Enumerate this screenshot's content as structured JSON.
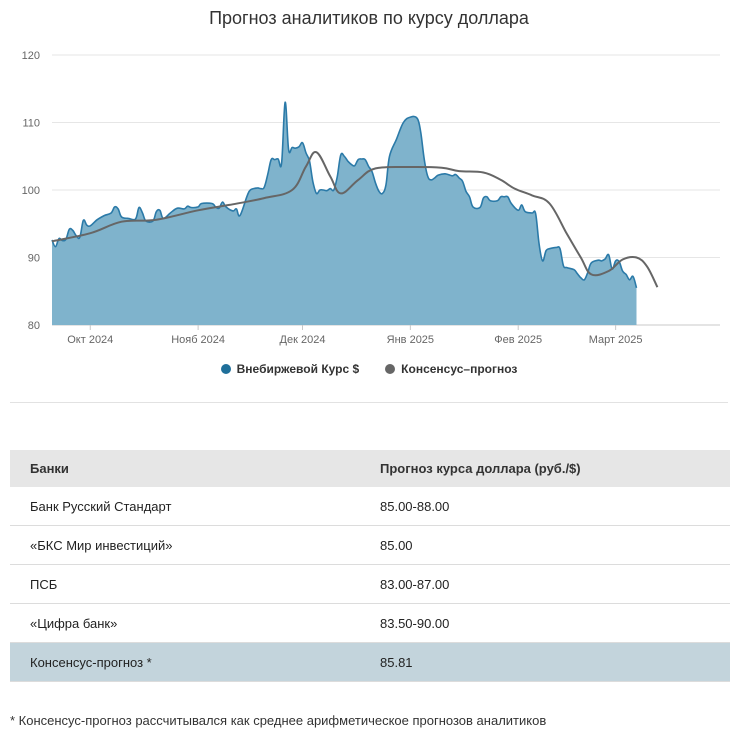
{
  "chart_data": {
    "type": "area",
    "title": "Прогноз аналитиков по курсу доллара",
    "ylim": [
      80,
      120
    ],
    "yticks": [
      80,
      90,
      100,
      110,
      120
    ],
    "xlim": [
      "2024-09-20",
      "2025-03-31"
    ],
    "xticks": [
      {
        "date": "2024-10-01",
        "label": "Окт 2024"
      },
      {
        "date": "2024-11-01",
        "label": "Нояб 2024"
      },
      {
        "date": "2024-12-01",
        "label": "Дек 2024"
      },
      {
        "date": "2025-01-01",
        "label": "Янв 2025"
      },
      {
        "date": "2025-02-01",
        "label": "Фев 2025"
      },
      {
        "date": "2025-03-01",
        "label": "Март 2025"
      }
    ],
    "grid": true,
    "legend_position": "bottom",
    "series": [
      {
        "name": "Внебиржевой Курс $",
        "type": "area",
        "color": "#2b7aa8",
        "fill": "#7fb3cc",
        "points": [
          [
            "2024-09-20",
            92.6
          ],
          [
            "2024-09-21",
            91.6
          ],
          [
            "2024-09-22",
            92.8
          ],
          [
            "2024-09-23",
            92.5
          ],
          [
            "2024-09-24",
            92.7
          ],
          [
            "2024-09-25",
            94.2
          ],
          [
            "2024-09-26",
            94.0
          ],
          [
            "2024-09-27",
            93.2
          ],
          [
            "2024-09-28",
            93.0
          ],
          [
            "2024-09-29",
            95.5
          ],
          [
            "2024-09-30",
            94.8
          ],
          [
            "2024-10-01",
            94.7
          ],
          [
            "2024-10-03",
            95.6
          ],
          [
            "2024-10-05",
            96.2
          ],
          [
            "2024-10-07",
            96.6
          ],
          [
            "2024-10-08",
            97.5
          ],
          [
            "2024-10-09",
            97.2
          ],
          [
            "2024-10-10",
            96.0
          ],
          [
            "2024-10-12",
            95.8
          ],
          [
            "2024-10-14",
            95.7
          ],
          [
            "2024-10-15",
            97.4
          ],
          [
            "2024-10-16",
            96.6
          ],
          [
            "2024-10-17",
            95.4
          ],
          [
            "2024-10-19",
            95.4
          ],
          [
            "2024-10-20",
            96.8
          ],
          [
            "2024-10-21",
            97.0
          ],
          [
            "2024-10-22",
            95.8
          ],
          [
            "2024-10-24",
            96.6
          ],
          [
            "2024-10-26",
            97.3
          ],
          [
            "2024-10-28",
            97.2
          ],
          [
            "2024-10-29",
            97.6
          ],
          [
            "2024-10-30",
            97.4
          ],
          [
            "2024-11-01",
            97.5
          ],
          [
            "2024-11-02",
            98.0
          ],
          [
            "2024-11-05",
            98.0
          ],
          [
            "2024-11-06",
            97.5
          ],
          [
            "2024-11-07",
            97.3
          ],
          [
            "2024-11-08",
            98.2
          ],
          [
            "2024-11-09",
            97.5
          ],
          [
            "2024-11-11",
            96.9
          ],
          [
            "2024-11-12",
            97.2
          ],
          [
            "2024-11-13",
            96.2
          ],
          [
            "2024-11-15",
            99.0
          ],
          [
            "2024-11-16",
            100.0
          ],
          [
            "2024-11-18",
            100.3
          ],
          [
            "2024-11-19",
            100.2
          ],
          [
            "2024-11-20",
            100.4
          ],
          [
            "2024-11-21",
            102.3
          ],
          [
            "2024-11-22",
            104.5
          ],
          [
            "2024-11-23",
            104.5
          ],
          [
            "2024-11-24",
            104.6
          ],
          [
            "2024-11-25",
            104.0
          ],
          [
            "2024-11-26",
            113.0
          ],
          [
            "2024-11-27",
            106.0
          ],
          [
            "2024-11-28",
            106.3
          ],
          [
            "2024-11-29",
            106.2
          ],
          [
            "2024-11-30",
            106.4
          ],
          [
            "2024-12-01",
            107.0
          ],
          [
            "2024-12-02",
            105.5
          ],
          [
            "2024-12-03",
            104.3
          ],
          [
            "2024-12-04",
            101.2
          ],
          [
            "2024-12-05",
            99.5
          ],
          [
            "2024-12-06",
            100.0
          ],
          [
            "2024-12-07",
            100.0
          ],
          [
            "2024-12-08",
            99.9
          ],
          [
            "2024-12-09",
            100.2
          ],
          [
            "2024-12-10",
            100.0
          ],
          [
            "2024-12-11",
            102.0
          ],
          [
            "2024-12-12",
            105.2
          ],
          [
            "2024-12-13",
            105.0
          ],
          [
            "2024-12-14",
            104.3
          ],
          [
            "2024-12-15",
            103.8
          ],
          [
            "2024-12-16",
            103.6
          ],
          [
            "2024-12-17",
            104.5
          ],
          [
            "2024-12-18",
            104.6
          ],
          [
            "2024-12-19",
            104.5
          ],
          [
            "2024-12-20",
            103.5
          ],
          [
            "2024-12-21",
            102.7
          ],
          [
            "2024-12-22",
            101.0
          ],
          [
            "2024-12-23",
            99.8
          ],
          [
            "2024-12-24",
            99.5
          ],
          [
            "2024-12-25",
            100.8
          ],
          [
            "2024-12-26",
            105.0
          ],
          [
            "2024-12-28",
            107.5
          ],
          [
            "2024-12-30",
            110.0
          ],
          [
            "2025-01-01",
            110.8
          ],
          [
            "2025-01-03",
            110.6
          ],
          [
            "2025-01-04",
            108.5
          ],
          [
            "2025-01-05",
            104.5
          ],
          [
            "2025-01-06",
            102.0
          ],
          [
            "2025-01-07",
            101.5
          ],
          [
            "2025-01-08",
            101.8
          ],
          [
            "2025-01-09",
            102.2
          ],
          [
            "2025-01-11",
            102.4
          ],
          [
            "2025-01-13",
            102.1
          ],
          [
            "2025-01-14",
            102.3
          ],
          [
            "2025-01-15",
            101.8
          ],
          [
            "2025-01-16",
            101.3
          ],
          [
            "2025-01-17",
            99.8
          ],
          [
            "2025-01-18",
            99.0
          ],
          [
            "2025-01-19",
            97.5
          ],
          [
            "2025-01-21",
            97.4
          ],
          [
            "2025-01-22",
            98.8
          ],
          [
            "2025-01-23",
            99.0
          ],
          [
            "2025-01-24",
            98.4
          ],
          [
            "2025-01-26",
            98.4
          ],
          [
            "2025-01-27",
            99.0
          ],
          [
            "2025-01-28",
            99.0
          ],
          [
            "2025-01-29",
            99.0
          ],
          [
            "2025-01-30",
            98.0
          ],
          [
            "2025-02-01",
            97.0
          ],
          [
            "2025-02-02",
            97.8
          ],
          [
            "2025-02-03",
            96.8
          ],
          [
            "2025-02-05",
            96.6
          ],
          [
            "2025-02-06",
            96.5
          ],
          [
            "2025-02-07",
            92.0
          ],
          [
            "2025-02-08",
            89.5
          ],
          [
            "2025-02-09",
            91.0
          ],
          [
            "2025-02-10",
            91.3
          ],
          [
            "2025-02-12",
            91.5
          ],
          [
            "2025-02-13",
            91.3
          ],
          [
            "2025-02-14",
            88.8
          ],
          [
            "2025-02-15",
            88.5
          ],
          [
            "2025-02-17",
            88.2
          ],
          [
            "2025-02-18",
            87.6
          ],
          [
            "2025-02-19",
            87.0
          ],
          [
            "2025-02-20",
            86.7
          ],
          [
            "2025-02-21",
            87.8
          ],
          [
            "2025-02-22",
            89.2
          ],
          [
            "2025-02-24",
            89.6
          ],
          [
            "2025-02-25",
            89.5
          ],
          [
            "2025-02-26",
            89.8
          ],
          [
            "2025-02-27",
            90.4
          ],
          [
            "2025-02-28",
            88.3
          ],
          [
            "2025-03-01",
            89.5
          ],
          [
            "2025-03-02",
            89.4
          ],
          [
            "2025-03-03",
            88.0
          ],
          [
            "2025-03-04",
            87.5
          ],
          [
            "2025-03-05",
            86.7
          ],
          [
            "2025-03-06",
            87.2
          ],
          [
            "2025-03-07",
            85.5
          ]
        ]
      },
      {
        "name": "Консенсус–прогноз",
        "type": "line",
        "color": "#666666",
        "points": [
          [
            "2024-09-20",
            92.4
          ],
          [
            "2024-10-01",
            93.6
          ],
          [
            "2024-10-10",
            95.3
          ],
          [
            "2024-10-20",
            95.6
          ],
          [
            "2024-11-01",
            97.0
          ],
          [
            "2024-11-10",
            97.8
          ],
          [
            "2024-11-20",
            98.8
          ],
          [
            "2024-11-28",
            100.0
          ],
          [
            "2024-12-02",
            103.5
          ],
          [
            "2024-12-05",
            105.6
          ],
          [
            "2024-12-09",
            102.0
          ],
          [
            "2024-12-12",
            99.5
          ],
          [
            "2024-12-17",
            101.5
          ],
          [
            "2024-12-22",
            103.2
          ],
          [
            "2025-01-01",
            103.4
          ],
          [
            "2025-01-10",
            103.3
          ],
          [
            "2025-01-15",
            102.8
          ],
          [
            "2025-01-22",
            102.6
          ],
          [
            "2025-01-27",
            101.5
          ],
          [
            "2025-01-31",
            100.2
          ],
          [
            "2025-02-05",
            99.2
          ],
          [
            "2025-02-10",
            98.0
          ],
          [
            "2025-02-15",
            93.5
          ],
          [
            "2025-02-19",
            90.0
          ],
          [
            "2025-02-22",
            87.5
          ],
          [
            "2025-02-27",
            88.0
          ],
          [
            "2025-03-03",
            89.7
          ],
          [
            "2025-03-07",
            90.0
          ],
          [
            "2025-03-10",
            88.7
          ],
          [
            "2025-03-13",
            85.6
          ]
        ]
      }
    ]
  },
  "table": {
    "headers": [
      "Банки",
      "Прогноз курса доллара (руб./$)"
    ],
    "rows": [
      [
        "Банк Русский Стандарт",
        "85.00-88.00"
      ],
      [
        "«БКС Мир инвестиций»",
        "85.00"
      ],
      [
        "ПСБ",
        "83.00-87.00"
      ],
      [
        "«Цифра банк»",
        "83.50-90.00"
      ]
    ],
    "consensus": [
      "Консенсус-прогноз *",
      "85.81"
    ]
  },
  "footnote": "* Консенсус-прогноз рассчитывался как среднее арифметическое прогнозов аналитиков"
}
